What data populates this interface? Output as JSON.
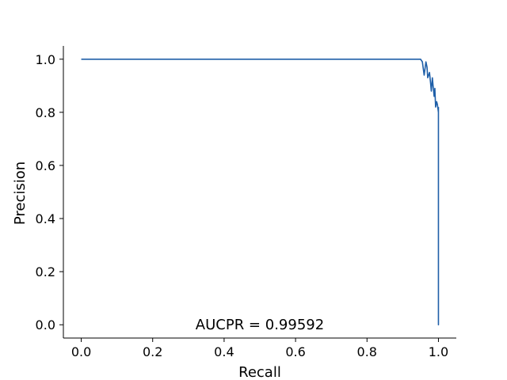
{
  "chart_data": {
    "type": "line",
    "title": "",
    "xlabel": "Recall",
    "ylabel": "Precision",
    "xlim": [
      -0.05,
      1.05
    ],
    "ylim": [
      -0.05,
      1.05
    ],
    "xticks": [
      0.0,
      0.2,
      0.4,
      0.6,
      0.8,
      1.0
    ],
    "xtick_labels": [
      "0.0",
      "0.2",
      "0.4",
      "0.6",
      "0.8",
      "1.0"
    ],
    "yticks": [
      0.0,
      0.2,
      0.4,
      0.6,
      0.8,
      1.0
    ],
    "ytick_labels": [
      "0.0",
      "0.2",
      "0.4",
      "0.6",
      "0.8",
      "1.0"
    ],
    "grid": false,
    "annotation": "AUCPR = 0.99592",
    "series": [
      {
        "color": "#1f5fa8",
        "x": [
          0.0,
          0.95,
          0.955,
          0.96,
          0.962,
          0.965,
          0.968,
          0.97,
          0.975,
          0.978,
          0.98,
          0.983,
          0.985,
          0.988,
          0.99,
          0.992,
          0.995,
          0.997,
          1.0,
          1.0,
          1.0
        ],
        "y": [
          1.0,
          1.0,
          0.99,
          0.94,
          0.96,
          0.99,
          0.97,
          0.93,
          0.95,
          0.91,
          0.88,
          0.93,
          0.9,
          0.86,
          0.89,
          0.82,
          0.84,
          0.83,
          0.8,
          0.0,
          0.82
        ]
      }
    ]
  }
}
